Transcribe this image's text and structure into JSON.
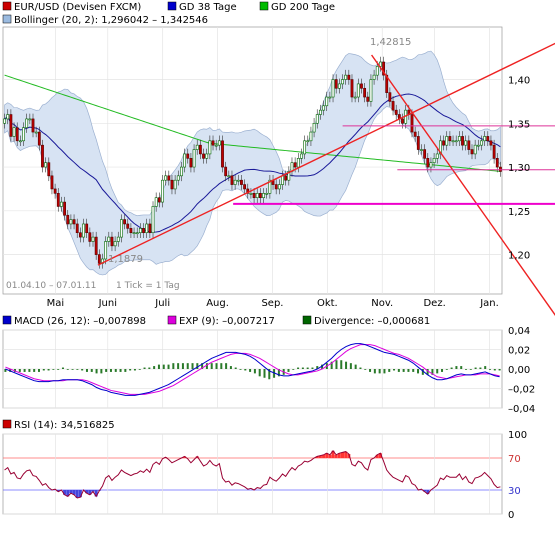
{
  "price_panel": {
    "legend": [
      {
        "label": "EUR/USD (Devisen FXCM)",
        "color": "#cc0000"
      },
      {
        "label": "GD 38 Tage",
        "color": "#0000cc"
      },
      {
        "label": "GD 200 Tage",
        "color": "#00bb00"
      },
      {
        "label": "Bollinger (20, 2): 1,296042 – 1,342546",
        "color": "#9bbbe0"
      }
    ],
    "date_range": "01.04.10 – 07.01.11",
    "tick_info": "1 Tick = 1 Tag",
    "annotations": {
      "high": "1,42815",
      "low": "1,1879"
    },
    "colors": {
      "up": "#006600",
      "down": "#bb0000",
      "bollinger": "#d7e3f3",
      "gd38": "#1a1a99",
      "gd200": "#22bb22",
      "trend": "#ee2222",
      "support": "#ee00cc",
      "resistance": "#dd3399"
    }
  },
  "macd_panel": {
    "legend": [
      {
        "label": "MACD (26, 12): –0,007898",
        "color": "#0000cc"
      },
      {
        "label": "EXP (9): –0,007217",
        "color": "#dd00dd"
      },
      {
        "label": "Divergence: –0,000681",
        "color": "#006600"
      }
    ]
  },
  "rsi_panel": {
    "legend": [
      {
        "label": "RSI (14): 34,516825",
        "color": "#cc0000"
      }
    ]
  },
  "chart_data": [
    {
      "type": "candlestick",
      "title": "EUR/USD (Devisen FXCM)",
      "x_start": "2010-04-01",
      "x_end": "2011-01-07",
      "x_ticks": [
        "Mai",
        "Juni",
        "Juli",
        "Aug.",
        "Sep.",
        "Okt.",
        "Nov.",
        "Dez.",
        "Jan."
      ],
      "y_ticks": [
        "1,20",
        "1,25",
        "1,30",
        "1,35",
        "1,40"
      ],
      "ylim": [
        1.155,
        1.46
      ],
      "close": [
        1.355,
        1.36,
        1.335,
        1.345,
        1.33,
        1.33,
        1.345,
        1.355,
        1.355,
        1.34,
        1.34,
        1.325,
        1.3,
        1.305,
        1.29,
        1.275,
        1.27,
        1.255,
        1.26,
        1.245,
        1.235,
        1.24,
        1.235,
        1.225,
        1.22,
        1.235,
        1.225,
        1.215,
        1.22,
        1.2,
        1.19,
        1.195,
        1.215,
        1.22,
        1.21,
        1.215,
        1.22,
        1.24,
        1.235,
        1.23,
        1.225,
        1.225,
        1.225,
        1.23,
        1.225,
        1.235,
        1.225,
        1.255,
        1.265,
        1.26,
        1.285,
        1.29,
        1.285,
        1.275,
        1.285,
        1.29,
        1.3,
        1.315,
        1.31,
        1.3,
        1.32,
        1.325,
        1.315,
        1.31,
        1.315,
        1.33,
        1.325,
        1.325,
        1.33,
        1.3,
        1.29,
        1.29,
        1.28,
        1.285,
        1.285,
        1.28,
        1.275,
        1.27,
        1.27,
        1.265,
        1.27,
        1.265,
        1.27,
        1.27,
        1.285,
        1.28,
        1.275,
        1.28,
        1.29,
        1.285,
        1.295,
        1.305,
        1.3,
        1.31,
        1.315,
        1.33,
        1.33,
        1.34,
        1.35,
        1.36,
        1.365,
        1.37,
        1.38,
        1.38,
        1.4,
        1.39,
        1.395,
        1.4,
        1.405,
        1.4,
        1.38,
        1.38,
        1.395,
        1.39,
        1.38,
        1.375,
        1.4,
        1.405,
        1.415,
        1.42,
        1.405,
        1.385,
        1.375,
        1.365,
        1.36,
        1.355,
        1.35,
        1.365,
        1.36,
        1.34,
        1.335,
        1.32,
        1.32,
        1.31,
        1.3,
        1.305,
        1.31,
        1.315,
        1.33,
        1.325,
        1.335,
        1.33,
        1.33,
        1.33,
        1.335,
        1.325,
        1.33,
        1.32,
        1.315,
        1.325,
        1.325,
        1.33,
        1.335,
        1.33,
        1.325,
        1.31,
        1.3,
        1.295
      ],
      "indicators": [
        "Bollinger (20, 2)",
        "GD 38 Tage",
        "GD 200 Tage"
      ],
      "lines": [
        {
          "name": "trend-up",
          "from": [
            29,
            1.188
          ],
          "to": [
            155,
            1.385
          ]
        },
        {
          "name": "trend-down",
          "from": [
            114,
            1.428
          ],
          "to": [
            155,
            1.18
          ]
        },
        {
          "name": "support",
          "from": [
            71,
            1.258
          ],
          "to": [
            155,
            1.258
          ]
        },
        {
          "name": "resistance",
          "from": [
            105,
            1.347
          ],
          "to": [
            155,
            1.347
          ]
        },
        {
          "name": "level-130",
          "from": [
            122,
            1.297
          ],
          "to": [
            155,
            1.297
          ]
        }
      ]
    },
    {
      "type": "line",
      "title": "MACD (26, 12)",
      "y_ticks": [
        "0,04",
        "0,02",
        "0,00",
        "–0,02",
        "–0,04"
      ],
      "ylim": [
        -0.04,
        0.04
      ],
      "series": [
        {
          "name": "MACD (26, 12)",
          "values": [
            0.0,
            -0.002,
            -0.004,
            -0.006,
            -0.008,
            -0.01,
            -0.012,
            -0.013,
            -0.013,
            -0.013,
            -0.012,
            -0.012,
            -0.011,
            -0.011,
            -0.011,
            -0.011,
            -0.012,
            -0.014,
            -0.016,
            -0.019,
            -0.021,
            -0.022,
            -0.024,
            -0.025,
            -0.026,
            -0.027,
            -0.027,
            -0.027,
            -0.026,
            -0.025,
            -0.024,
            -0.022,
            -0.02,
            -0.018,
            -0.016,
            -0.013,
            -0.01,
            -0.007,
            -0.004,
            -0.001,
            0.002,
            0.005,
            0.008,
            0.011,
            0.013,
            0.015,
            0.017,
            0.017,
            0.017,
            0.016,
            0.015,
            0.013,
            0.01,
            0.006,
            0.002,
            -0.002,
            -0.004,
            -0.006,
            -0.007,
            -0.007,
            -0.006,
            -0.005,
            -0.004,
            -0.003,
            -0.002,
            0.0,
            0.003,
            0.007,
            0.011,
            0.016,
            0.02,
            0.023,
            0.025,
            0.026,
            0.026,
            0.025,
            0.023,
            0.021,
            0.019,
            0.017,
            0.016,
            0.015,
            0.013,
            0.011,
            0.009,
            0.006,
            0.002,
            -0.002,
            -0.006,
            -0.009,
            -0.011,
            -0.011,
            -0.01,
            -0.008,
            -0.006,
            -0.005,
            -0.006,
            -0.006,
            -0.005,
            -0.004,
            -0.003,
            -0.005,
            -0.007,
            -0.008
          ]
        },
        {
          "name": "EXP (9)",
          "values": [
            0.002,
            0.0,
            -0.002,
            -0.004,
            -0.006,
            -0.008,
            -0.01,
            -0.011,
            -0.012,
            -0.012,
            -0.012,
            -0.012,
            -0.012,
            -0.011,
            -0.011,
            -0.011,
            -0.011,
            -0.012,
            -0.014,
            -0.016,
            -0.018,
            -0.02,
            -0.022,
            -0.023,
            -0.024,
            -0.025,
            -0.026,
            -0.026,
            -0.026,
            -0.026,
            -0.025,
            -0.024,
            -0.023,
            -0.021,
            -0.019,
            -0.017,
            -0.014,
            -0.011,
            -0.008,
            -0.005,
            -0.002,
            0.001,
            0.004,
            0.007,
            0.009,
            0.011,
            0.013,
            0.015,
            0.016,
            0.016,
            0.016,
            0.015,
            0.013,
            0.011,
            0.008,
            0.005,
            0.002,
            -0.001,
            -0.003,
            -0.005,
            -0.006,
            -0.006,
            -0.005,
            -0.004,
            -0.003,
            -0.002,
            0.0,
            0.003,
            0.006,
            0.01,
            0.014,
            0.018,
            0.021,
            0.023,
            0.025,
            0.025,
            0.025,
            0.024,
            0.022,
            0.02,
            0.018,
            0.016,
            0.015,
            0.013,
            0.011,
            0.008,
            0.005,
            0.002,
            -0.002,
            -0.005,
            -0.008,
            -0.009,
            -0.01,
            -0.009,
            -0.008,
            -0.007,
            -0.006,
            -0.006,
            -0.006,
            -0.005,
            -0.005,
            -0.005,
            -0.006,
            -0.007
          ]
        }
      ]
    },
    {
      "type": "line",
      "title": "RSI (14)",
      "y_ticks": [
        "100",
        "70",
        "30",
        "0"
      ],
      "ylim": [
        0,
        100
      ],
      "guide_levels": [
        70,
        30
      ],
      "series": [
        {
          "name": "RSI (14)",
          "values": [
            55,
            58,
            50,
            52,
            45,
            44,
            50,
            54,
            55,
            48,
            47,
            42,
            36,
            38,
            33,
            30,
            31,
            28,
            30,
            24,
            22,
            26,
            24,
            20,
            21,
            30,
            26,
            24,
            28,
            22,
            29,
            35,
            45,
            48,
            42,
            46,
            49,
            55,
            52,
            50,
            48,
            50,
            51,
            54,
            52,
            56,
            52,
            62,
            65,
            62,
            69,
            71,
            68,
            64,
            66,
            68,
            70,
            72,
            69,
            64,
            68,
            72,
            66,
            60,
            62,
            67,
            62,
            60,
            63,
            45,
            40,
            41,
            36,
            39,
            38,
            36,
            34,
            31,
            32,
            30,
            33,
            32,
            36,
            37,
            46,
            43,
            41,
            45,
            50,
            47,
            53,
            58,
            55,
            60,
            62,
            66,
            65,
            67,
            70,
            72,
            73,
            74,
            76,
            74,
            79,
            74,
            76,
            77,
            78,
            75,
            62,
            60,
            66,
            64,
            58,
            55,
            68,
            70,
            74,
            76,
            66,
            55,
            50,
            46,
            44,
            42,
            40,
            48,
            46,
            38,
            36,
            30,
            31,
            28,
            25,
            30,
            33,
            36,
            45,
            43,
            48,
            46,
            46,
            46,
            50,
            43,
            47,
            40,
            38,
            45,
            46,
            48,
            52,
            48,
            44,
            37,
            33,
            34
          ]
        }
      ]
    }
  ]
}
